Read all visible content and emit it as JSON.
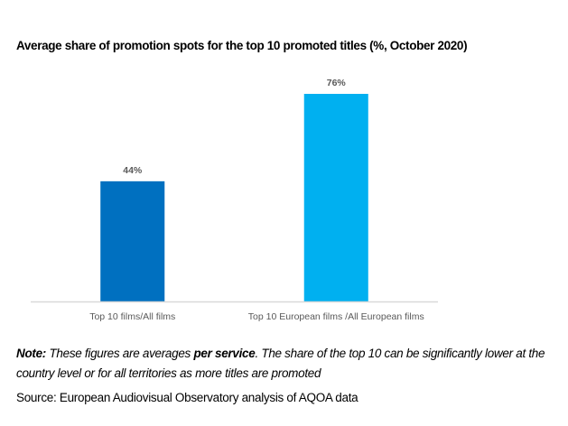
{
  "chart_data": {
    "type": "bar",
    "title": "Average share of promotion spots for the top 10 promoted titles (%, October 2020)",
    "categories": [
      "Top 10 films/All films",
      "Top 10 European films /All European films"
    ],
    "values": [
      44,
      76
    ],
    "data_labels": [
      "44%",
      "76%"
    ],
    "colors": [
      "#0070C0",
      "#00B0F0"
    ],
    "xlabel": "",
    "ylabel": "",
    "ylim": [
      0,
      76
    ],
    "grid": false,
    "legend": "none",
    "axis_color": "#D9D9D9",
    "label_color": "#595959"
  },
  "note": {
    "prefix": "Note:",
    "text_1": " These figures are averages ",
    "emphasis": "per service",
    "text_2": ". The share of the top 10 can be significantly lower at the country level or for all territories as more titles are promoted"
  },
  "source": "Source: European Audiovisual Observatory analysis of AQOA data"
}
